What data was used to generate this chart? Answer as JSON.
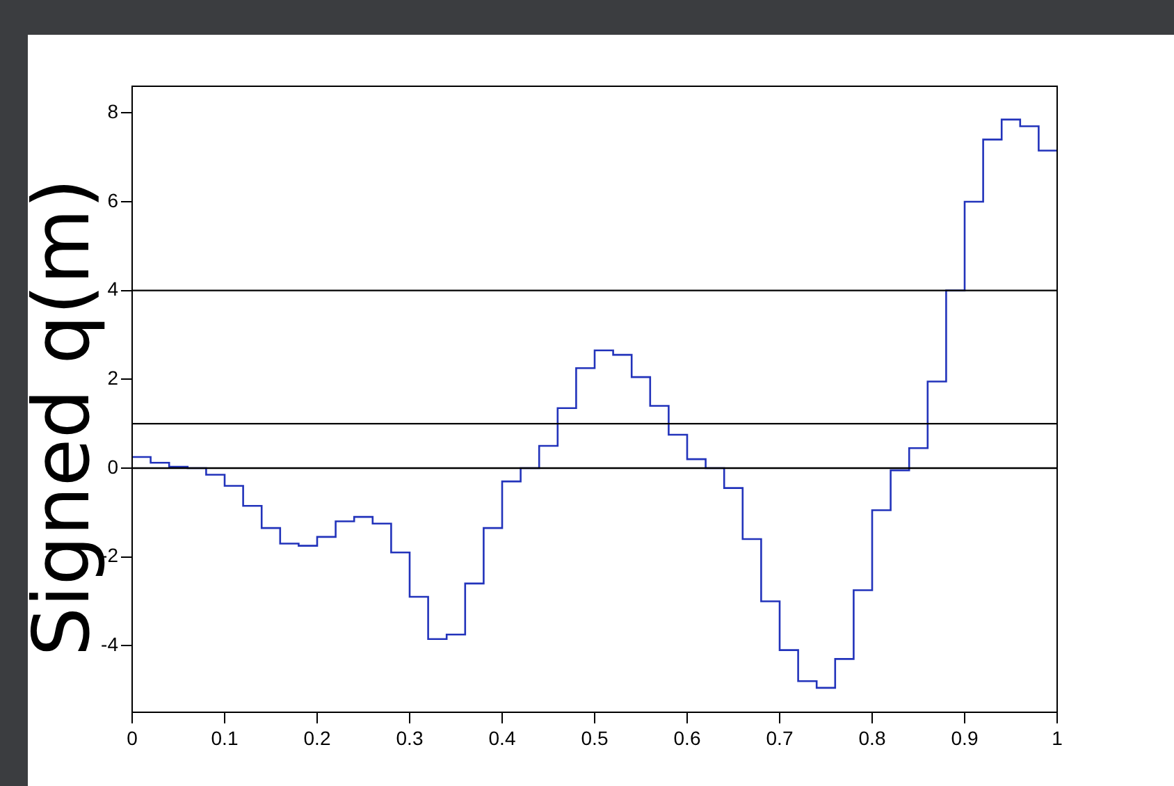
{
  "chart_data": {
    "type": "histogram",
    "ylabel": "Signed q(m)",
    "bins": [
      0,
      0.02,
      0.04,
      0.06,
      0.08,
      0.1,
      0.12,
      0.14,
      0.16,
      0.18,
      0.2,
      0.22,
      0.24,
      0.26,
      0.28,
      0.3,
      0.32,
      0.34,
      0.36,
      0.38,
      0.4,
      0.42,
      0.44,
      0.46,
      0.48,
      0.5,
      0.52,
      0.54,
      0.56,
      0.58,
      0.6,
      0.62,
      0.64,
      0.66,
      0.68,
      0.7,
      0.72,
      0.74,
      0.76,
      0.78,
      0.8,
      0.82,
      0.84,
      0.86,
      0.88,
      0.9,
      0.92,
      0.94,
      0.96,
      0.98,
      1
    ],
    "values": [
      0.25,
      0.12,
      0.03,
      0,
      -0.15,
      -0.4,
      -0.85,
      -1.35,
      -1.7,
      -1.75,
      -1.55,
      -1.2,
      -1.1,
      -1.25,
      -1.9,
      -2.9,
      -3.85,
      -3.75,
      -2.6,
      -1.35,
      -0.3,
      0,
      0.5,
      1.35,
      2.25,
      2.65,
      2.55,
      2.05,
      1.4,
      0.75,
      0.2,
      0,
      -0.45,
      -1.6,
      -3.0,
      -4.1,
      -4.8,
      -4.95,
      -4.3,
      -2.75,
      -0.95,
      -0.05,
      0.45,
      1.95,
      4.0,
      6.0,
      7.4,
      7.85,
      7.7,
      7.15
    ],
    "color": "#2233bb",
    "xlim": [
      0,
      1
    ],
    "xticks": [
      0,
      0.1,
      0.2,
      0.3,
      0.4,
      0.5,
      0.6,
      0.7,
      0.8,
      0.9,
      1
    ],
    "ylim": [
      -5.5,
      8.6
    ],
    "yticks": [
      -4,
      -2,
      0,
      2,
      4,
      6,
      8
    ],
    "ref_lines": [
      {
        "axis": "y",
        "value": 0,
        "color": "#000000"
      },
      {
        "axis": "y",
        "value": 1,
        "color": "#000000"
      },
      {
        "axis": "y",
        "value": 4,
        "color": "#000000"
      }
    ],
    "grid": false,
    "legend": false
  }
}
